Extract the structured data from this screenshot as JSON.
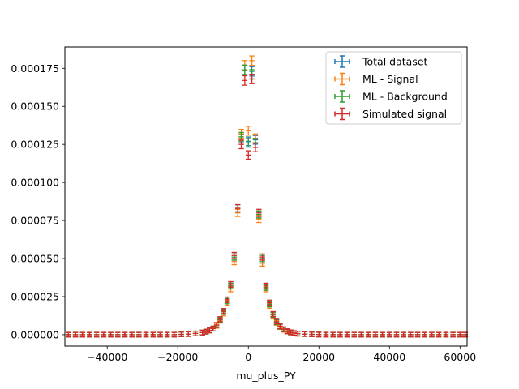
{
  "chart_data": {
    "type": "scatter",
    "title": "",
    "xlabel": "mu_plus_PY",
    "ylabel": "",
    "xlim": [
      -52000,
      62000
    ],
    "ylim": [
      -7.5e-06,
      0.000189
    ],
    "xticks": [
      -40000,
      -20000,
      0,
      20000,
      40000,
      60000
    ],
    "xtick_labels": [
      "−40000",
      "−20000",
      "0",
      "20000",
      "40000",
      "60000"
    ],
    "yticks": [
      0,
      2.5e-05,
      5e-05,
      7.5e-05,
      0.0001,
      0.000125,
      0.00015,
      0.000175
    ],
    "ytick_labels": [
      "0.000000",
      "0.000025",
      "0.000050",
      "0.000075",
      "0.000100",
      "0.000125",
      "0.000150",
      "0.000175"
    ],
    "grid": false,
    "legend_position": "top-right",
    "error_bars": true,
    "x": [
      -51000,
      -49000,
      -47000,
      -45000,
      -43000,
      -41000,
      -39000,
      -37000,
      -35000,
      -33000,
      -31000,
      -29000,
      -27000,
      -25000,
      -23000,
      -21000,
      -19000,
      -17000,
      -15000,
      -13000,
      -12000,
      -11000,
      -10000,
      -9000,
      -8000,
      -7000,
      -6000,
      -5000,
      -4000,
      -3000,
      -2000,
      -1000,
      0,
      1000,
      2000,
      3000,
      4000,
      5000,
      6000,
      7000,
      8000,
      9000,
      10000,
      11000,
      12000,
      13000,
      14000,
      16000,
      18000,
      20000,
      22000,
      24000,
      26000,
      28000,
      30000,
      32000,
      34000,
      36000,
      38000,
      40000,
      42000,
      44000,
      46000,
      48000,
      50000,
      52000,
      54000,
      56000,
      58000,
      60000,
      61500
    ],
    "series": [
      {
        "name": "Total dataset",
        "color": "#1f77b4",
        "values": [
          0,
          0,
          0,
          0,
          0,
          0,
          0,
          0,
          0,
          0,
          0,
          0,
          0,
          0,
          0,
          0,
          2e-07,
          4e-07,
          8e-07,
          1.4e-06,
          2e-06,
          2.8e-06,
          4e-06,
          6.2e-06,
          9.8e-06,
          1.5e-05,
          2.2e-05,
          3.2e-05,
          5.1e-05,
          8.3e-05,
          0.000129,
          0.000174,
          0.000127,
          0.000173,
          0.000128,
          7.9e-05,
          4.9e-05,
          3.1e-05,
          2e-05,
          1.3e-05,
          8.2e-06,
          5.2e-06,
          3.4e-06,
          2.2e-06,
          1.5e-06,
          1e-06,
          7e-07,
          4e-07,
          2e-07,
          1e-07,
          0,
          0,
          0,
          0,
          0,
          0,
          0,
          0,
          0,
          0,
          0,
          0,
          0,
          0,
          0,
          0,
          0,
          0,
          0,
          0,
          0
        ]
      },
      {
        "name": "ML - Signal",
        "color": "#ff7f0e",
        "values": [
          0,
          0,
          0,
          0,
          0,
          0,
          0,
          0,
          0,
          0,
          0,
          0,
          0,
          0,
          0,
          0,
          2e-07,
          4e-07,
          8e-07,
          1.4e-06,
          2e-06,
          2.8e-06,
          4e-06,
          5.8e-06,
          9.2e-06,
          1.4e-05,
          2.1e-05,
          3e-05,
          4.8e-05,
          8e-05,
          0.000132,
          0.000177,
          0.000134,
          0.00018,
          0.000129,
          7.6e-05,
          4.7e-05,
          3e-05,
          1.9e-05,
          1.2e-05,
          7.8e-06,
          5e-06,
          3.2e-06,
          2.1e-06,
          1.4e-06,
          9e-07,
          6e-07,
          4e-07,
          2e-07,
          1e-07,
          0,
          0,
          0,
          0,
          0,
          0,
          0,
          0,
          0,
          0,
          0,
          0,
          0,
          0,
          0,
          0,
          0,
          0,
          0,
          0,
          0
        ]
      },
      {
        "name": "ML - Background",
        "color": "#2ca02c",
        "values": [
          0,
          0,
          0,
          0,
          0,
          0,
          0,
          0,
          0,
          0,
          0,
          0,
          0,
          0,
          0,
          0,
          2e-07,
          4e-07,
          8e-07,
          1.4e-06,
          2e-06,
          2.8e-06,
          4e-06,
          6.2e-06,
          9.8e-06,
          1.5e-05,
          2.2e-05,
          3.2e-05,
          5.1e-05,
          8.3e-05,
          0.00013,
          0.000174,
          0.000126,
          0.000171,
          0.000126,
          7.9e-05,
          5e-05,
          3.1e-05,
          2e-05,
          1.3e-05,
          8.2e-06,
          5.2e-06,
          3.4e-06,
          2.2e-06,
          1.5e-06,
          1e-06,
          7e-07,
          4e-07,
          2e-07,
          1e-07,
          0,
          0,
          0,
          0,
          0,
          0,
          0,
          0,
          0,
          0,
          0,
          0,
          0,
          0,
          0,
          0,
          0,
          0,
          0,
          0,
          0
        ]
      },
      {
        "name": "Simulated signal",
        "color": "#d62728",
        "values": [
          0,
          0,
          0,
          0,
          0,
          0,
          0,
          0,
          0,
          0,
          0,
          0,
          0,
          0,
          0,
          0,
          2e-07,
          4e-07,
          8e-07,
          1.4e-06,
          2e-06,
          2.8e-06,
          4e-06,
          6.4e-06,
          1.02e-05,
          1.55e-05,
          2.3e-05,
          3.3e-05,
          5.2e-05,
          8.3e-05,
          0.000125,
          0.000167,
          0.000118,
          0.000168,
          0.000123,
          8e-05,
          5.1e-05,
          3.2e-05,
          2.1e-05,
          1.35e-05,
          8.6e-06,
          5.5e-06,
          3.6e-06,
          2.3e-06,
          1.6e-06,
          1.1e-06,
          7e-07,
          4e-07,
          2e-07,
          1e-07,
          0,
          0,
          0,
          0,
          0,
          0,
          0,
          0,
          0,
          0,
          0,
          0,
          0,
          0,
          0,
          0,
          0,
          0,
          0,
          0,
          0
        ]
      }
    ]
  }
}
